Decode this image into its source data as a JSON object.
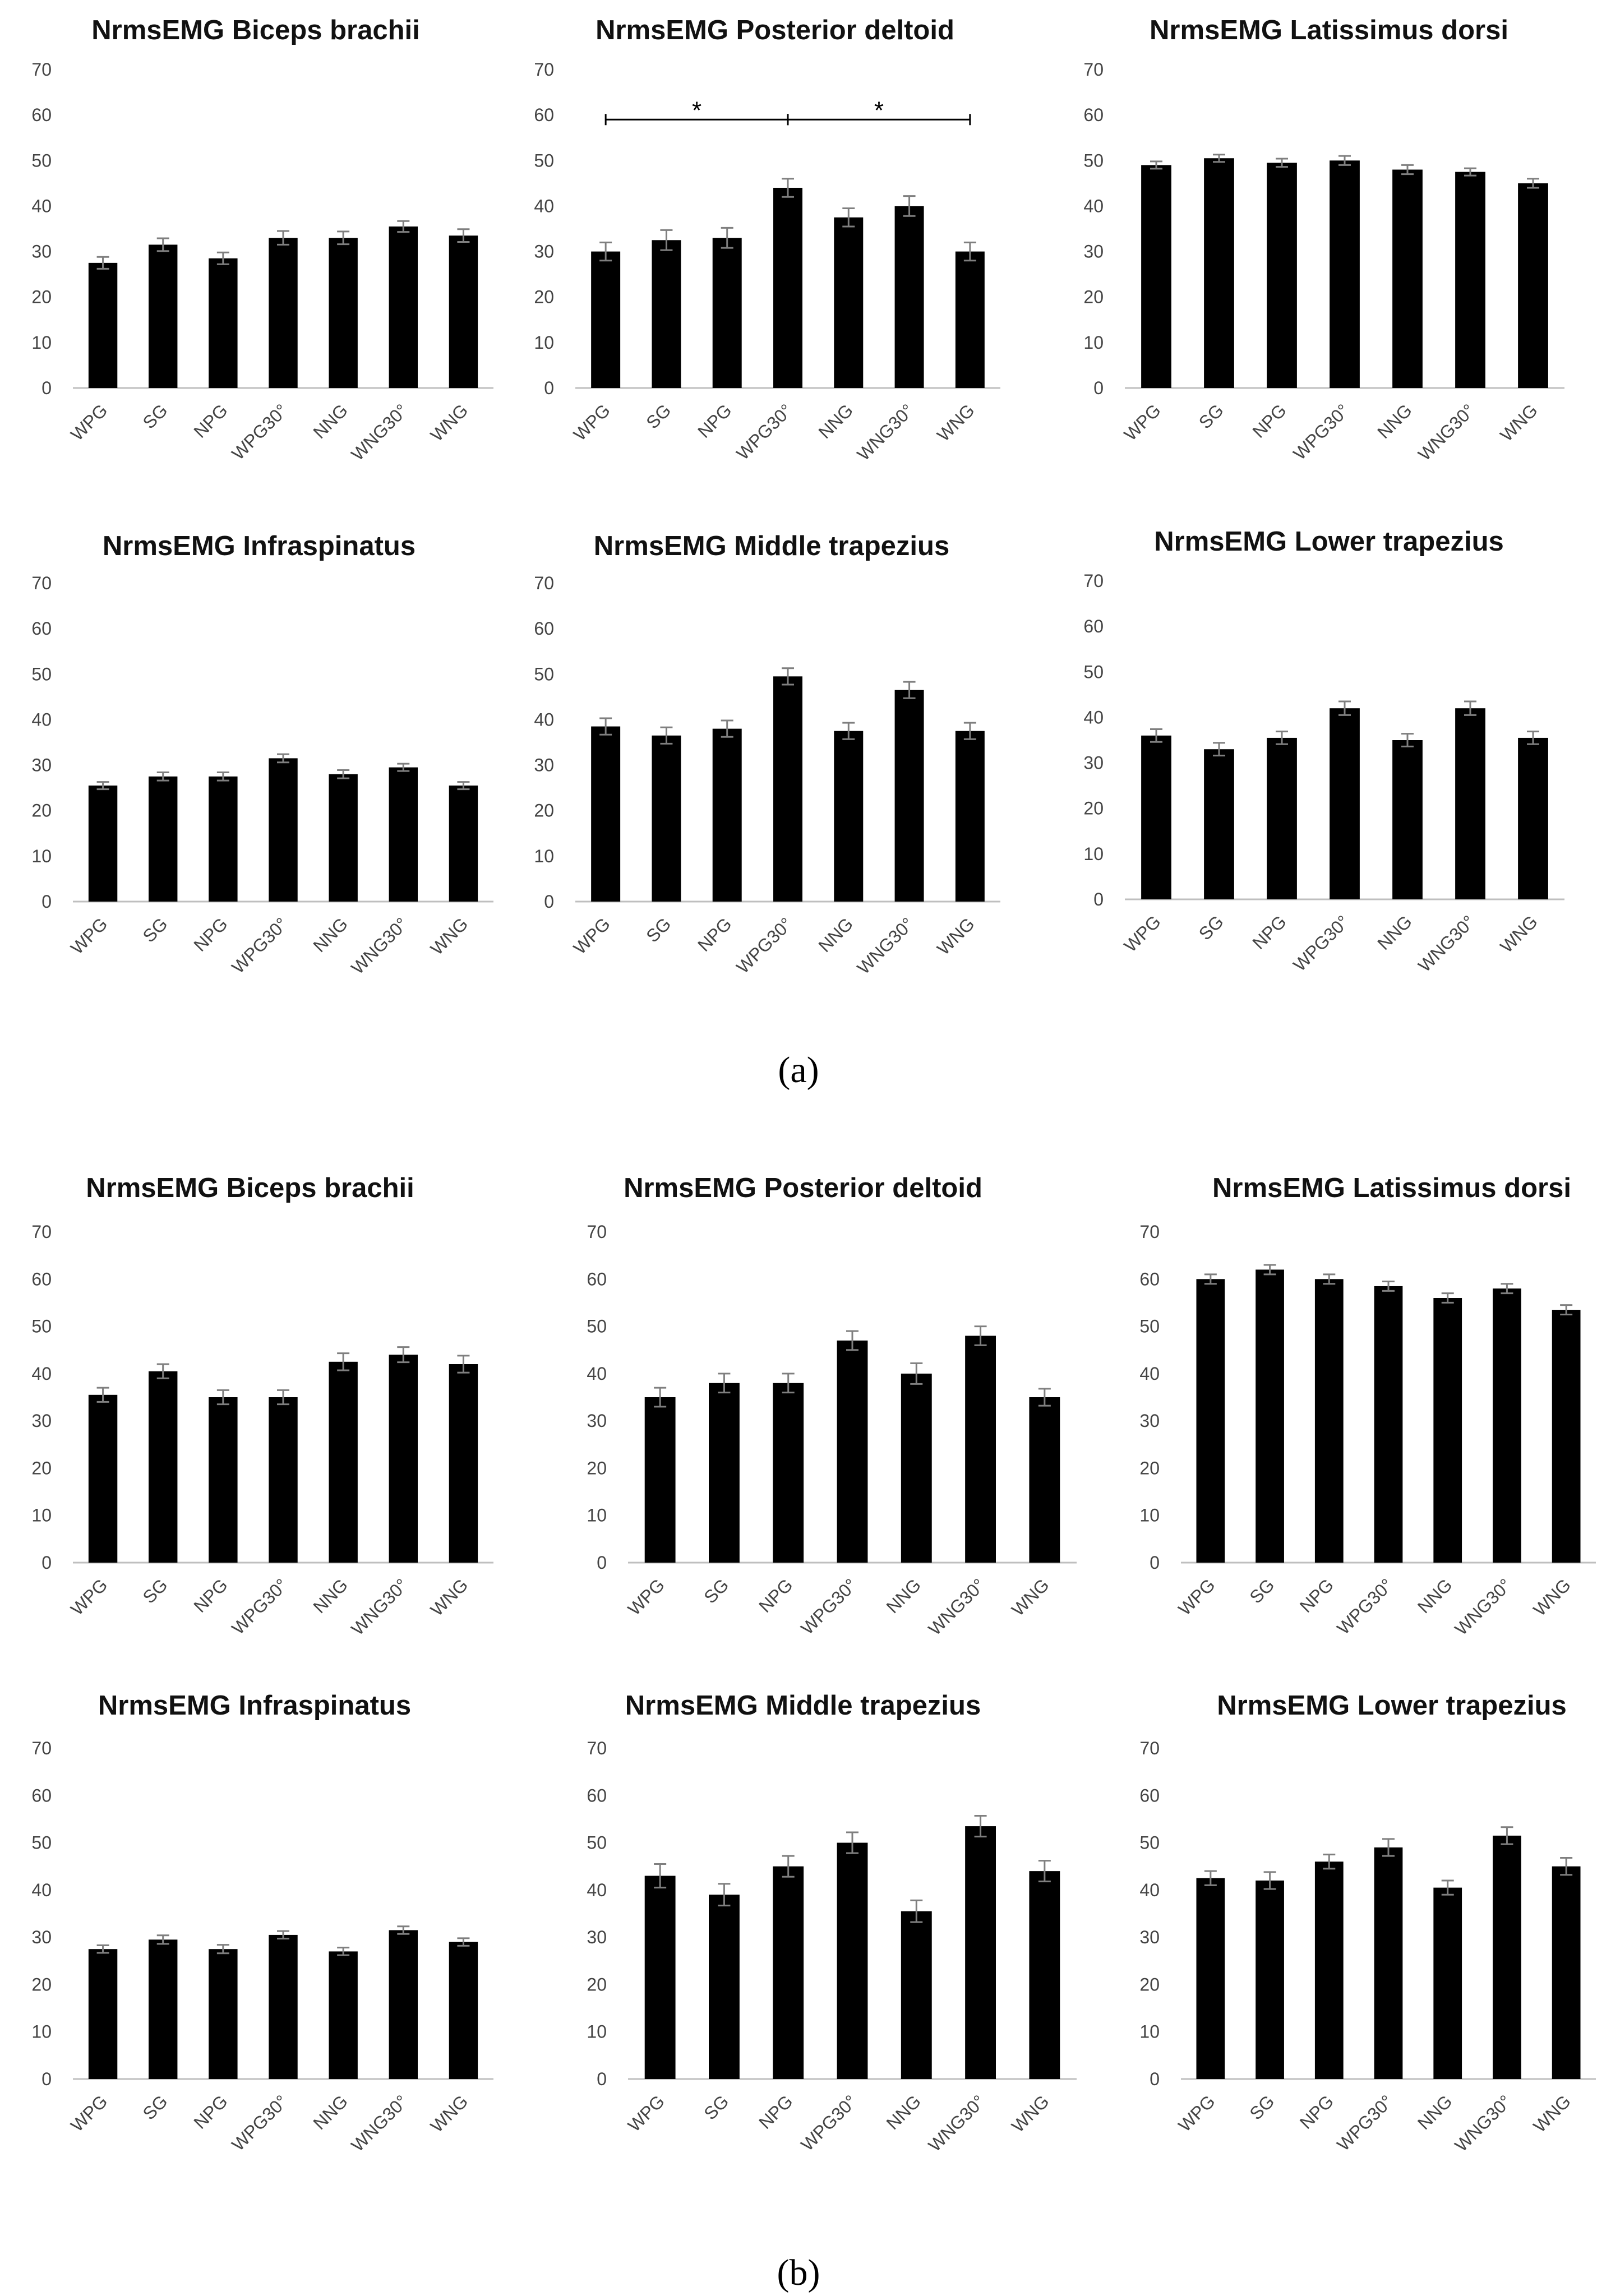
{
  "colors": {
    "bar": "#000000",
    "axis": "#bfbfbf",
    "error_bar": "#7f7f7f",
    "text": "#444444",
    "title": "#111111"
  },
  "panels": [
    {
      "label": "(a)"
    },
    {
      "label": "(b)"
    }
  ],
  "chart_data": [
    {
      "panel": "(a)",
      "type": "bar",
      "title": "NrmsEMG Biceps brachii",
      "xlabel": "",
      "ylabel": "",
      "ylim": [
        0,
        70
      ],
      "yticks": [
        0,
        10,
        20,
        30,
        40,
        50,
        60,
        70
      ],
      "grid": false,
      "legend": "none",
      "categories": [
        "WPG",
        "SG",
        "NPG",
        "WPG30°",
        "NNG",
        "WNG30°",
        "WNG"
      ],
      "values": [
        27.5,
        31.5,
        28.5,
        33,
        33,
        35.5,
        33.5
      ],
      "errors": [
        1.3,
        1.4,
        1.3,
        1.5,
        1.4,
        1.2,
        1.4
      ]
    },
    {
      "panel": "(a)",
      "type": "bar",
      "title": "NrmsEMG Posterior deltoid",
      "xlabel": "",
      "ylabel": "",
      "ylim": [
        0,
        70
      ],
      "yticks": [
        0,
        10,
        20,
        30,
        40,
        50,
        60,
        70
      ],
      "grid": false,
      "legend": "none",
      "categories": [
        "WPG",
        "SG",
        "NPG",
        "WPG30°",
        "NNG",
        "WNG30°",
        "WNG"
      ],
      "values": [
        30,
        32.5,
        33,
        44,
        37.5,
        40,
        30
      ],
      "errors": [
        2,
        2.2,
        2.2,
        2,
        2,
        2.2,
        2
      ],
      "annotations": [
        {
          "text": "*",
          "from": "WPG",
          "to": "WPG30°",
          "y": 59
        },
        {
          "text": "*",
          "from": "WPG30°",
          "to": "WNG",
          "y": 59
        }
      ]
    },
    {
      "panel": "(a)",
      "type": "bar",
      "title": "NrmsEMG Latissimus dorsi",
      "xlabel": "",
      "ylabel": "",
      "ylim": [
        0,
        70
      ],
      "yticks": [
        0,
        10,
        20,
        30,
        40,
        50,
        60,
        70
      ],
      "grid": false,
      "legend": "none",
      "categories": [
        "WPG",
        "SG",
        "NPG",
        "WPG30°",
        "NNG",
        "WNG30°",
        "WNG"
      ],
      "values": [
        49,
        50.5,
        49.5,
        50,
        48,
        47.5,
        45
      ],
      "errors": [
        0.8,
        0.8,
        0.9,
        1,
        1,
        0.8,
        1
      ]
    },
    {
      "panel": "(a)",
      "type": "bar",
      "title": "NrmsEMG Infraspinatus",
      "xlabel": "",
      "ylabel": "",
      "ylim": [
        0,
        70
      ],
      "yticks": [
        0,
        10,
        20,
        30,
        40,
        50,
        60,
        70
      ],
      "grid": false,
      "legend": "none",
      "categories": [
        "WPG",
        "SG",
        "NPG",
        "WPG30°",
        "NNG",
        "WNG30°",
        "WNG"
      ],
      "values": [
        25.5,
        27.5,
        27.5,
        31.5,
        28,
        29.5,
        25.5
      ],
      "errors": [
        0.8,
        0.9,
        0.9,
        0.9,
        0.9,
        0.8,
        0.8
      ]
    },
    {
      "panel": "(a)",
      "type": "bar",
      "title": "NrmsEMG Middle trapezius",
      "xlabel": "",
      "ylabel": "",
      "ylim": [
        0,
        70
      ],
      "yticks": [
        0,
        10,
        20,
        30,
        40,
        50,
        60,
        70
      ],
      "grid": false,
      "legend": "none",
      "categories": [
        "WPG",
        "SG",
        "NPG",
        "WPG30°",
        "NNG",
        "WNG30°",
        "WNG"
      ],
      "values": [
        38.5,
        36.5,
        38,
        49.5,
        37.5,
        46.5,
        37.5
      ],
      "errors": [
        1.8,
        1.8,
        1.8,
        1.8,
        1.8,
        1.8,
        1.8
      ]
    },
    {
      "panel": "(a)",
      "type": "bar",
      "title": "NrmsEMG Lower trapezius",
      "xlabel": "",
      "ylabel": "",
      "ylim": [
        0,
        70
      ],
      "yticks": [
        0,
        10,
        20,
        30,
        40,
        50,
        60,
        70
      ],
      "grid": false,
      "legend": "none",
      "categories": [
        "WPG",
        "SG",
        "NPG",
        "WPG30°",
        "NNG",
        "WNG30°",
        "WNG"
      ],
      "values": [
        36,
        33,
        35.5,
        42,
        35,
        42,
        35.5
      ],
      "errors": [
        1.4,
        1.4,
        1.4,
        1.5,
        1.4,
        1.5,
        1.4
      ]
    },
    {
      "panel": "(b)",
      "type": "bar",
      "title": "NrmsEMG Biceps brachii",
      "xlabel": "",
      "ylabel": "",
      "ylim": [
        0,
        70
      ],
      "yticks": [
        0,
        10,
        20,
        30,
        40,
        50,
        60,
        70
      ],
      "grid": false,
      "legend": "none",
      "categories": [
        "WPG",
        "SG",
        "NPG",
        "WPG30°",
        "NNG",
        "WNG30°",
        "WNG"
      ],
      "values": [
        35.5,
        40.5,
        35,
        35,
        42.5,
        44,
        42
      ],
      "errors": [
        1.5,
        1.5,
        1.5,
        1.5,
        1.8,
        1.6,
        1.8
      ]
    },
    {
      "panel": "(b)",
      "type": "bar",
      "title": "NrmsEMG Posterior deltoid",
      "xlabel": "",
      "ylabel": "",
      "ylim": [
        0,
        70
      ],
      "yticks": [
        0,
        10,
        20,
        30,
        40,
        50,
        60,
        70
      ],
      "grid": false,
      "legend": "none",
      "categories": [
        "WPG",
        "SG",
        "NPG",
        "WPG30°",
        "NNG",
        "WNG30°",
        "WNG"
      ],
      "values": [
        35,
        38,
        38,
        47,
        40,
        48,
        35
      ],
      "errors": [
        2,
        2,
        2,
        2,
        2.2,
        2,
        1.8
      ]
    },
    {
      "panel": "(b)",
      "type": "bar",
      "title": "NrmsEMG Latissimus dorsi",
      "xlabel": "",
      "ylabel": "",
      "ylim": [
        0,
        70
      ],
      "yticks": [
        0,
        10,
        20,
        30,
        40,
        50,
        60,
        70
      ],
      "grid": false,
      "legend": "none",
      "categories": [
        "WPG",
        "SG",
        "NPG",
        "WPG30°",
        "NNG",
        "WNG30°",
        "WNG"
      ],
      "values": [
        60,
        62,
        60,
        58.5,
        56,
        58,
        53.5
      ],
      "errors": [
        1,
        1,
        1,
        1,
        1,
        1,
        1
      ]
    },
    {
      "panel": "(b)",
      "type": "bar",
      "title": "NrmsEMG Infraspinatus",
      "xlabel": "",
      "ylabel": "",
      "ylim": [
        0,
        70
      ],
      "yticks": [
        0,
        10,
        20,
        30,
        40,
        50,
        60,
        70
      ],
      "grid": false,
      "legend": "none",
      "categories": [
        "WPG",
        "SG",
        "NPG",
        "WPG30°",
        "NNG",
        "WNG30°",
        "WNG"
      ],
      "values": [
        27.5,
        29.5,
        27.5,
        30.5,
        27,
        31.5,
        29
      ],
      "errors": [
        0.8,
        0.9,
        0.9,
        0.8,
        0.8,
        0.8,
        0.8
      ]
    },
    {
      "panel": "(b)",
      "type": "bar",
      "title": "NrmsEMG Middle trapezius",
      "xlabel": "",
      "ylabel": "",
      "ylim": [
        0,
        70
      ],
      "yticks": [
        0,
        10,
        20,
        30,
        40,
        50,
        60,
        70
      ],
      "grid": false,
      "legend": "none",
      "categories": [
        "WPG",
        "SG",
        "NPG",
        "WPG30°",
        "NNG",
        "WNG30°",
        "WNG"
      ],
      "values": [
        43,
        39,
        45,
        50,
        35.5,
        53.5,
        44
      ],
      "errors": [
        2.5,
        2.3,
        2.2,
        2.2,
        2.3,
        2.2,
        2.2
      ]
    },
    {
      "panel": "(b)",
      "type": "bar",
      "title": "NrmsEMG Lower trapezius",
      "xlabel": "",
      "ylabel": "",
      "ylim": [
        0,
        70
      ],
      "yticks": [
        0,
        10,
        20,
        30,
        40,
        50,
        60,
        70
      ],
      "grid": false,
      "legend": "none",
      "categories": [
        "WPG",
        "SG",
        "NPG",
        "WPG30°",
        "NNG",
        "WNG30°",
        "WNG"
      ],
      "values": [
        42.5,
        42,
        46,
        49,
        40.5,
        51.5,
        45
      ],
      "errors": [
        1.5,
        1.8,
        1.5,
        1.8,
        1.5,
        1.8,
        1.8
      ]
    }
  ]
}
